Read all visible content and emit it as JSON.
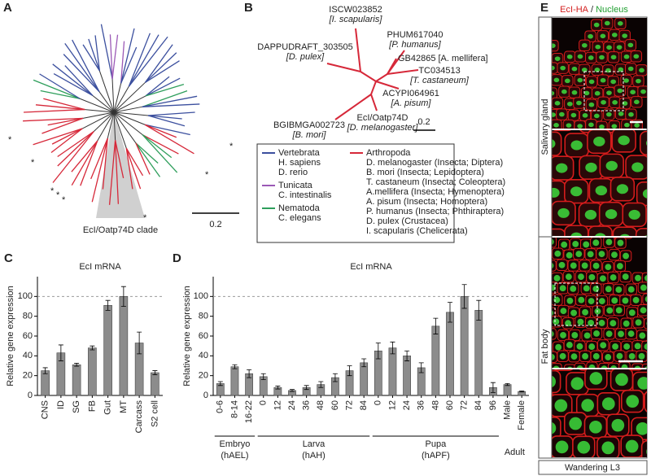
{
  "panel_a": {
    "letter": "A",
    "clade_label": "EcI/Oatp74D clade",
    "scale_label": "0.2",
    "asterisks": [
      "*",
      "*",
      "*",
      "*",
      "*",
      "*",
      "*",
      "*"
    ]
  },
  "panel_b": {
    "letter": "B",
    "scale_label": "0.2",
    "leaves": [
      {
        "id": "ISCW023852",
        "species": "[I. scapularis]"
      },
      {
        "id": "DAPPUDRAFT_303505",
        "species": "[D. pulex]"
      },
      {
        "id": "PHUM617040",
        "species": "[P. humanus]"
      },
      {
        "id": "GB42865",
        "species": "[A. mellifera]"
      },
      {
        "id": "TC034513",
        "species": "[T. castaneum]"
      },
      {
        "id": "ACYPI064961",
        "species": "[A. pisum]"
      },
      {
        "id": "EcI/Oatp74D",
        "species": "[D. melanogaster]"
      },
      {
        "id": "BGIBMGA002723",
        "species": "[B. mori]"
      }
    ],
    "legend": [
      {
        "name": "Vertebrata",
        "color": "#3b4f9e",
        "species": [
          "H. sapiens",
          "D. rerio"
        ]
      },
      {
        "name": "Tunicata",
        "color": "#9b59b6",
        "species": [
          "C. intestinalis"
        ]
      },
      {
        "name": "Nematoda",
        "color": "#2e9e5b",
        "species": [
          "C. elegans"
        ]
      },
      {
        "name": "Arthropoda",
        "color": "#d62839",
        "species": [
          "D. melanogaster (Insecta; Diptera)",
          "B. mori (Insecta; Lepidoptera)",
          "T. castaneum (Insecta; Coleoptera)",
          "A.mellifera (Insecta; Hymenoptera)",
          "A. pisum (Insecta; Homoptera)",
          "P. humanus (Insecta; Phthiraptera)",
          "D. pulex (Crustacea)",
          "I. scapularis (Chelicerata)"
        ]
      }
    ]
  },
  "chart_data": [
    {
      "type": "bar",
      "panel_label": "C",
      "title": "EcI mRNA",
      "y_label": "Relative gene expression",
      "color": "#8c8c8c",
      "categories": [
        "CNS",
        "ID",
        "SG",
        "FB",
        "Gut",
        "MT",
        "Carcass",
        "S2 cell"
      ],
      "values": [
        25,
        43,
        31,
        48,
        91,
        100,
        53,
        23
      ],
      "errors": [
        3,
        8,
        1.5,
        2,
        5,
        10,
        11,
        2
      ],
      "ylim": [
        0,
        120
      ],
      "yticks": [
        0,
        20,
        40,
        60,
        80,
        100
      ],
      "reference_line": 100
    },
    {
      "type": "bar",
      "panel_label": "D",
      "title": "EcI mRNA",
      "y_label": "Relative gene expression",
      "color": "#8c8c8c",
      "groups": [
        {
          "name": "Embryo",
          "unit": "(hAEL)",
          "categories": [
            "0-6",
            "8-14",
            "16-22"
          ],
          "values": [
            12,
            29,
            22
          ],
          "errors": [
            2,
            2,
            4
          ]
        },
        {
          "name": "Larva",
          "unit": "(hAH)",
          "categories": [
            "0",
            "12",
            "24",
            "36",
            "48",
            "60",
            "72",
            "84"
          ],
          "values": [
            19,
            8,
            5,
            8,
            11,
            18,
            25,
            33
          ],
          "errors": [
            3,
            1.5,
            1,
            2,
            3,
            4,
            5,
            4
          ]
        },
        {
          "name": "Pupa",
          "unit": "(hAPF)",
          "categories": [
            "0",
            "12",
            "24",
            "36",
            "48",
            "60",
            "72",
            "84",
            "96"
          ],
          "values": [
            45,
            48,
            40,
            28,
            70,
            84,
            100,
            86,
            8
          ],
          "errors": [
            8,
            6,
            5,
            5,
            8,
            10,
            12,
            10,
            5
          ]
        },
        {
          "name": "Adult",
          "categories": [
            "Male",
            "Female"
          ],
          "values": [
            11,
            4
          ],
          "errors": [
            1,
            0.5
          ]
        }
      ],
      "ylim": [
        0,
        120
      ],
      "yticks": [
        0,
        20,
        40,
        60,
        80,
        100
      ],
      "reference_line": 100
    }
  ],
  "panel_e": {
    "letter": "E",
    "header": {
      "red": "EcI-HA",
      "separator": "/",
      "green": "Nucleus"
    },
    "tissues": [
      "Salivary gland",
      "Fat body"
    ],
    "stage": "Wandering L3"
  }
}
